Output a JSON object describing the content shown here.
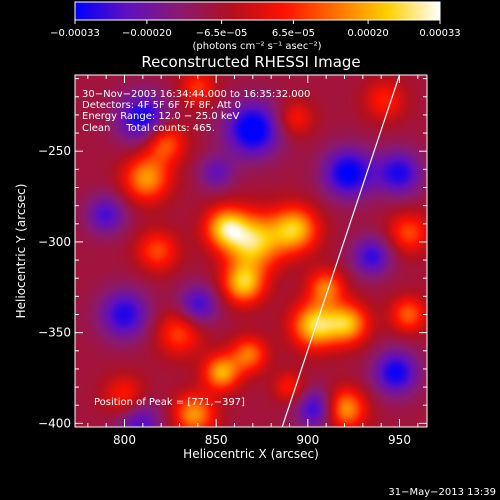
{
  "chart_data": {
    "type": "heatmap",
    "title": "Reconstructed RHESSI Image",
    "xlabel": "Heliocentric X (arcsec)",
    "ylabel": "Heliocentric Y (arcsec)",
    "xlim": [
      773,
      965
    ],
    "ylim": [
      -402,
      -208
    ],
    "x_ticks": [
      800,
      850,
      900,
      950
    ],
    "y_ticks": [
      -250,
      -300,
      -350,
      -400
    ],
    "x_tick_labels": [
      "800",
      "850",
      "900",
      "950"
    ],
    "y_tick_labels": [
      "−250",
      "−300",
      "−350",
      "−400"
    ],
    "colorbar": {
      "min": -0.00033,
      "max": 0.00033,
      "ticks": [
        -0.00033,
        -0.0002,
        -6.5e-05,
        6.5e-05,
        0.0002,
        0.00033
      ],
      "tick_labels": [
        "−0.00033",
        "−0.00020",
        "−6.5e−05",
        "6.5e−05",
        "0.00020",
        "0.00033"
      ],
      "unit_label": "(photons cm⁻² s⁻¹ asec⁻²)",
      "colors": [
        "#0000ff",
        "#6010c0",
        "#8a1a70",
        "#b01020",
        "#ff1000",
        "#ff7000",
        "#ffd000",
        "#ffffff"
      ]
    },
    "annotations": {
      "time_range": "30−Nov−2003 16:34:44.000 to 16:35:32.000",
      "detectors": "Detectors: 4F 5F 6F 7F 8F, Att 0",
      "energy_range": "Energy Range: 12.0 − 25.0 keV",
      "method_counts": "Clean     Total counts: 465.",
      "peak": "Position of Peak = [771,−397]"
    },
    "limb_line": {
      "points": [
        [
          886,
          -402
        ],
        [
          950,
          -208
        ]
      ]
    },
    "sources": [
      {
        "x": 870,
        "y": -300,
        "amplitude": 0.00033,
        "sigma": 11
      },
      {
        "x": 855,
        "y": -292,
        "amplitude": 0.00028,
        "sigma": 8
      },
      {
        "x": 893,
        "y": -293,
        "amplitude": 0.0003,
        "sigma": 9
      },
      {
        "x": 865,
        "y": -323,
        "amplitude": 0.0003,
        "sigma": 8
      },
      {
        "x": 904,
        "y": -346,
        "amplitude": 0.00033,
        "sigma": 9
      },
      {
        "x": 922,
        "y": -345,
        "amplitude": 0.00028,
        "sigma": 8
      },
      {
        "x": 910,
        "y": -325,
        "amplitude": 0.00022,
        "sigma": 7
      },
      {
        "x": 812,
        "y": -265,
        "amplitude": 0.00026,
        "sigma": 9
      },
      {
        "x": 822,
        "y": -245,
        "amplitude": 0.00022,
        "sigma": 8
      },
      {
        "x": 818,
        "y": -305,
        "amplitude": 0.00018,
        "sigma": 8
      },
      {
        "x": 830,
        "y": -350,
        "amplitude": 0.00018,
        "sigma": 9
      },
      {
        "x": 853,
        "y": -372,
        "amplitude": 0.00028,
        "sigma": 7
      },
      {
        "x": 868,
        "y": -362,
        "amplitude": 0.00022,
        "sigma": 7
      },
      {
        "x": 838,
        "y": -395,
        "amplitude": 0.00026,
        "sigma": 8
      },
      {
        "x": 800,
        "y": -385,
        "amplitude": 0.00015,
        "sigma": 8
      },
      {
        "x": 955,
        "y": -340,
        "amplitude": 0.0002,
        "sigma": 7
      },
      {
        "x": 955,
        "y": -295,
        "amplitude": 0.00018,
        "sigma": 8
      },
      {
        "x": 942,
        "y": -222,
        "amplitude": 0.00014,
        "sigma": 8
      },
      {
        "x": 920,
        "y": -392,
        "amplitude": 0.00028,
        "sigma": 8
      },
      {
        "x": 890,
        "y": -380,
        "amplitude": 0.00014,
        "sigma": 6
      },
      {
        "x": 893,
        "y": -232,
        "amplitude": 0.00014,
        "sigma": 7
      },
      {
        "x": 840,
        "y": -215,
        "amplitude": 0.00016,
        "sigma": 7
      },
      {
        "x": 810,
        "y": -232,
        "amplitude": -0.00025,
        "sigma": 10
      },
      {
        "x": 870,
        "y": -238,
        "amplitude": -0.00028,
        "sigma": 11
      },
      {
        "x": 922,
        "y": -262,
        "amplitude": -0.00026,
        "sigma": 10
      },
      {
        "x": 950,
        "y": -262,
        "amplitude": -0.00022,
        "sigma": 9
      },
      {
        "x": 790,
        "y": -285,
        "amplitude": -0.00018,
        "sigma": 8
      },
      {
        "x": 800,
        "y": -340,
        "amplitude": -0.00022,
        "sigma": 10
      },
      {
        "x": 840,
        "y": -335,
        "amplitude": -0.0002,
        "sigma": 8
      },
      {
        "x": 808,
        "y": -400,
        "amplitude": -0.00018,
        "sigma": 9
      },
      {
        "x": 905,
        "y": -392,
        "amplitude": -0.00022,
        "sigma": 8
      },
      {
        "x": 948,
        "y": -372,
        "amplitude": -0.00024,
        "sigma": 9
      },
      {
        "x": 935,
        "y": -308,
        "amplitude": -0.0002,
        "sigma": 8
      },
      {
        "x": 850,
        "y": -262,
        "amplitude": -0.00014,
        "sigma": 7
      }
    ]
  },
  "footer": {
    "timestamp": "31−May−2013 13:39"
  }
}
